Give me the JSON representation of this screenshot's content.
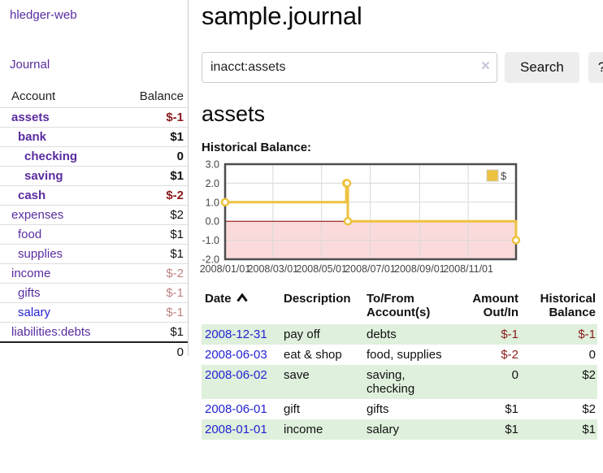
{
  "sidebar": {
    "brand": "hledger-web",
    "nav": {
      "journal_label": "Journal"
    },
    "accounts_table": {
      "headers": {
        "account": "Account",
        "balance": "Balance"
      },
      "rows": [
        {
          "name": "assets",
          "balance": "$-1",
          "indent": 1,
          "bold": true,
          "neg": "strong"
        },
        {
          "name": "bank",
          "balance": "$1",
          "indent": 2,
          "bold": true
        },
        {
          "name": "checking",
          "balance": "0",
          "indent": 3,
          "bold": true
        },
        {
          "name": "saving",
          "balance": "$1",
          "indent": 3,
          "bold": true
        },
        {
          "name": "cash",
          "balance": "$-2",
          "indent": 2,
          "bold": true,
          "neg": "strong"
        },
        {
          "name": "expenses",
          "balance": "$2",
          "indent": 1
        },
        {
          "name": "food",
          "balance": "$1",
          "indent": 2
        },
        {
          "name": "supplies",
          "balance": "$1",
          "indent": 2
        },
        {
          "name": "income",
          "balance": "$-2",
          "indent": 1,
          "neg": "soft"
        },
        {
          "name": "gifts",
          "balance": "$-1",
          "indent": 2,
          "neg": "soft"
        },
        {
          "name": "salary",
          "balance": "$-1",
          "indent": 2,
          "neg": "soft",
          "link_color": "blue"
        },
        {
          "name": "liabilities:debts",
          "balance": "$1",
          "indent": 1
        }
      ],
      "total": "0"
    }
  },
  "main": {
    "title": "sample.journal",
    "search": {
      "value": "inacct:assets",
      "clear_icon": "×",
      "search_label": "Search",
      "help_label": "?"
    },
    "account_heading": "assets",
    "chart_label": "Historical Balance:"
  },
  "chart_data": {
    "type": "line",
    "title": "Historical Balance",
    "steps": true,
    "series": [
      {
        "name": "$",
        "color": "#EDC240",
        "points": [
          [
            "2008-01-01",
            1
          ],
          [
            "2008-06-01",
            2
          ],
          [
            "2008-06-02",
            2
          ],
          [
            "2008-06-03",
            0
          ],
          [
            "2008-12-31",
            -1
          ]
        ]
      }
    ],
    "x_ticks": [
      "2008/01/01",
      "2008/03/01",
      "2008/05/01",
      "2008/07/01",
      "2008/09/01",
      "2008/11/01"
    ],
    "y_ticks": [
      "3.0",
      "2.0",
      "1.0",
      "0.0",
      "-1.0",
      "-2.0"
    ],
    "ylim": [
      -2,
      3
    ],
    "xlim": [
      "2008-01-01",
      "2008-12-31"
    ],
    "grid": true,
    "legend_position": "top-right",
    "negative_region_color": "#fadada",
    "zero_line_color": "#8b0000",
    "grid_color": "#d9d9d9",
    "border_color": "#4d4d4d"
  },
  "register_table": {
    "headers": {
      "date": "Date",
      "description": "Description",
      "accounts": "To/From Account(s)",
      "amount": "Amount Out/In",
      "balance": "Historical Balance"
    },
    "sort_icon": "chevron-up",
    "rows": [
      {
        "date": "2008-12-31",
        "description": "pay off",
        "accounts": "debts",
        "amount": "$-1",
        "balance": "$-1"
      },
      {
        "date": "2008-06-03",
        "description": "eat & shop",
        "accounts": "food, supplies",
        "amount": "$-2",
        "balance": "0"
      },
      {
        "date": "2008-06-02",
        "description": "save",
        "accounts": "saving, checking",
        "amount": "0",
        "balance": "$2"
      },
      {
        "date": "2008-06-01",
        "description": "gift",
        "accounts": "gifts",
        "amount": "$1",
        "balance": "$2"
      },
      {
        "date": "2008-01-01",
        "description": "income",
        "accounts": "salary",
        "amount": "$1",
        "balance": "$1"
      }
    ]
  },
  "colors": {
    "link_purple": "#5a2ca0",
    "link_blue": "#2323d3",
    "negative_strong": "#8b1a1a",
    "negative_soft": "#bf8383",
    "row_stripe_green": "#dff0dc",
    "chart_series_yellow": "#EDC240",
    "chart_negative_pink": "#fadada",
    "chart_zero_red": "#8b0000"
  }
}
